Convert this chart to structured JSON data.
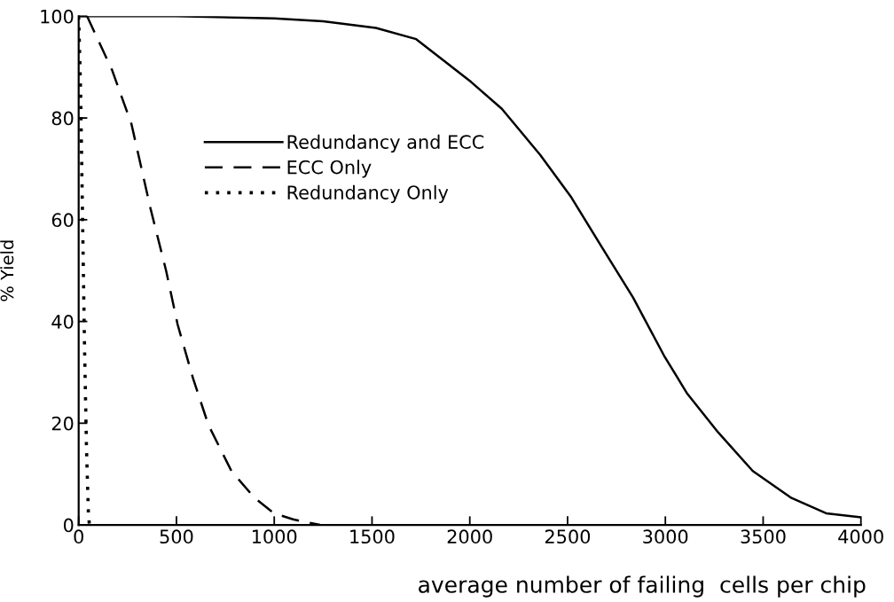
{
  "chart_data": {
    "type": "line",
    "xlabel": "average number of failing  cells per chip",
    "ylabel": "% Yield",
    "xlim": [
      0,
      4000
    ],
    "ylim": [
      0,
      100
    ],
    "xticks": [
      0,
      500,
      1000,
      1500,
      2000,
      2500,
      3000,
      3500,
      4000
    ],
    "yticks": [
      0,
      20,
      40,
      60,
      80,
      100
    ],
    "grid": false,
    "legend": "top left",
    "marker": "none",
    "series": [
      {
        "name": "Redundancy and ECC",
        "color": "#000000",
        "line_style": "solid",
        "x": [
          14,
          500,
          1000,
          1250,
          1520,
          1726,
          2006,
          2164,
          2361,
          2519,
          2677,
          2835,
          2993,
          3112,
          3270,
          3447,
          3645,
          3822,
          4000
        ],
        "values": [
          100,
          100,
          99.6,
          99,
          97.7,
          95.5,
          87.1,
          81.8,
          72.7,
          64.4,
          54.5,
          44.7,
          33.3,
          25.8,
          18.2,
          10.6,
          5.3,
          2.3,
          1.5
        ]
      },
      {
        "name": "ECC Only",
        "color": "#000000",
        "line_style": "dashed",
        "x": [
          43,
          171,
          270,
          368,
          447,
          506,
          585,
          663,
          781,
          900,
          998,
          1096,
          1234
        ],
        "values": [
          100,
          89.4,
          78.8,
          62.1,
          50,
          39.4,
          28.8,
          19.7,
          10.6,
          5.3,
          2.3,
          1.1,
          0
        ]
      },
      {
        "name": "Redundancy Only",
        "color": "#000000",
        "line_style": "dotted",
        "x": [
          0,
          10,
          20,
          30,
          40,
          50,
          55
        ],
        "values": [
          100,
          85,
          60,
          35,
          15,
          2,
          0
        ]
      }
    ]
  }
}
